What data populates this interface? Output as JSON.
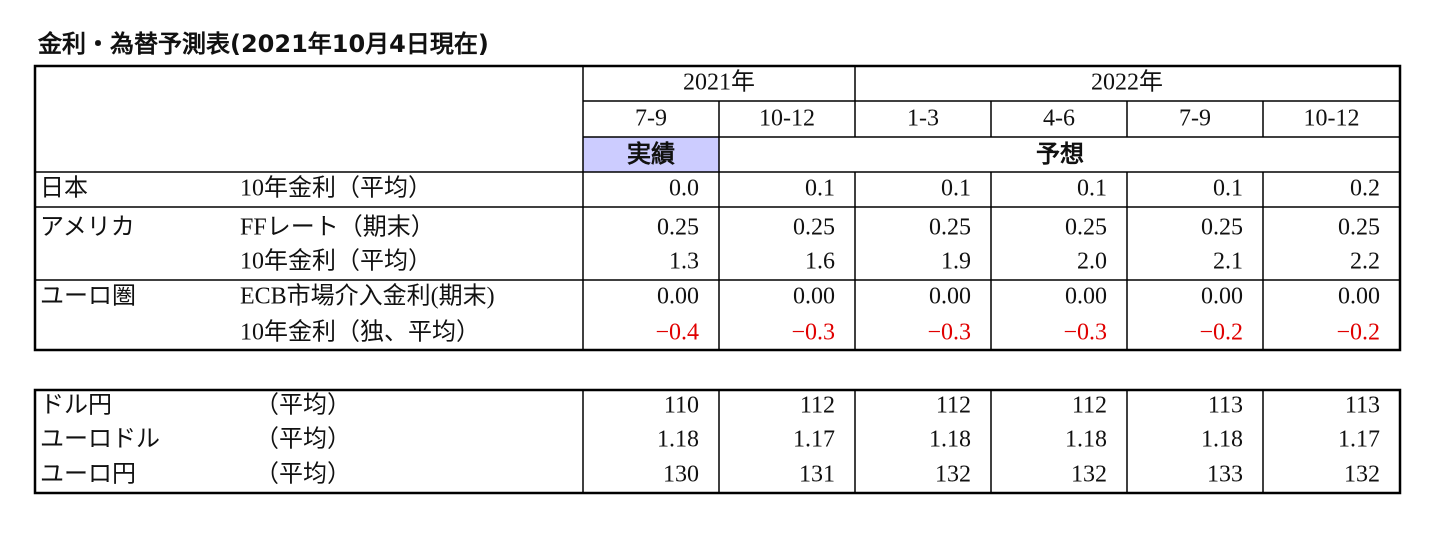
{
  "title": "金利・為替予測表(2021年10月4日現在)",
  "table1": {
    "years": [
      "2021年",
      "2022年"
    ],
    "periods": [
      "7-9",
      "10-12",
      "1-3",
      "4-6",
      "7-9",
      "10-12"
    ],
    "status": [
      "実績",
      "予想"
    ],
    "rows": [
      {
        "region": "日本",
        "item": "10年金利（平均）",
        "values": [
          "0.0",
          "0.1",
          "0.1",
          "0.1",
          "0.1",
          "0.2"
        ]
      },
      {
        "region": "アメリカ",
        "item": "FFレート（期末）",
        "values": [
          "0.25",
          "0.25",
          "0.25",
          "0.25",
          "0.25",
          "0.25"
        ]
      },
      {
        "region": null,
        "item": "10年金利（平均）",
        "values": [
          "1.3",
          "1.6",
          "1.9",
          "2.0",
          "2.1",
          "2.2"
        ]
      },
      {
        "region": "ユーロ圏",
        "item": "ECB市場介入金利(期末)",
        "values": [
          "0.00",
          "0.00",
          "0.00",
          "0.00",
          "0.00",
          "0.00"
        ]
      },
      {
        "region": null,
        "item": "10年金利（独、平均）",
        "values": [
          "−0.4",
          "−0.3",
          "−0.3",
          "−0.3",
          "−0.2",
          "−0.2"
        ],
        "color": "#e00000"
      }
    ]
  },
  "table2": {
    "rows": [
      {
        "label": "ドル円",
        "item": "（平均）",
        "values": [
          "110",
          "112",
          "112",
          "112",
          "113",
          "113"
        ]
      },
      {
        "label": "ユーロドル",
        "item": "（平均）",
        "values": [
          "1.18",
          "1.17",
          "1.18",
          "1.18",
          "1.18",
          "1.17"
        ]
      },
      {
        "label": "ユーロ円",
        "item": "（平均）",
        "values": [
          "130",
          "131",
          "132",
          "132",
          "133",
          "132"
        ]
      }
    ]
  }
}
